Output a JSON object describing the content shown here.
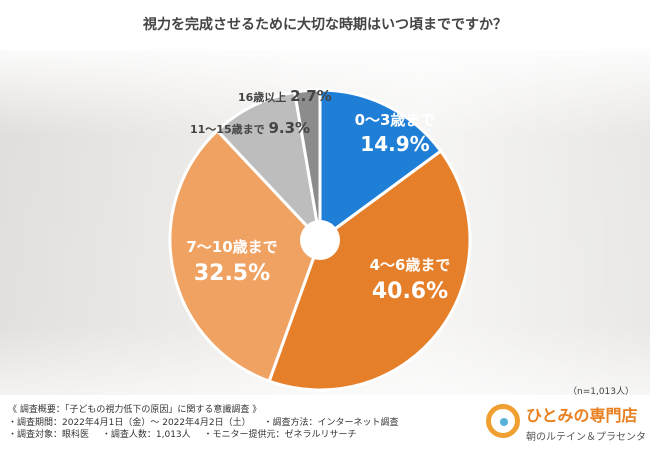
{
  "chart_data": {
    "type": "pie",
    "title": "視力を完成させるために大切な時期はいつ頃までですか？",
    "slices": [
      {
        "label": "0〜3歳まで",
        "value": 14.9,
        "value_text": "14.9%",
        "color": "#1f7fd6"
      },
      {
        "label": "4〜6歳まで",
        "value": 40.6,
        "value_text": "40.6%",
        "color": "#e67f2a"
      },
      {
        "label": "7〜10歳まで",
        "value": 32.5,
        "value_text": "32.5%",
        "color": "#f0a263"
      },
      {
        "label": "11〜15歳まで",
        "value": 9.3,
        "value_text": "9.3%",
        "color": "#bdbdbd"
      },
      {
        "label": "16歳以上",
        "value": 2.7,
        "value_text": "2.7%",
        "color": "#8c8c8c"
      }
    ],
    "sample_note": "（n=1,013人）"
  },
  "survey": {
    "overview": "《 調査概要：「子どもの視力低下の原因」に関する意識調査 》",
    "period": "・調査期間：2022年4月1日（金）〜 2022年4月2日（土）",
    "method": "・調査方法：インターネット調査",
    "target": "・調査対象：眼科医",
    "count": "・調査人数：1,013人",
    "provider": "・モニター提供元：ゼネラルリサーチ"
  },
  "brand": {
    "name": "ひとみの専門店",
    "sub": "朝のルテイン＆プラセンタ"
  }
}
